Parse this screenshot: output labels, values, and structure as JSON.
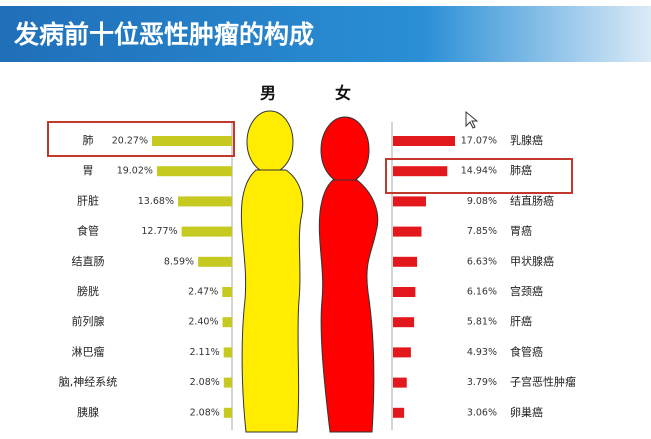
{
  "chart_data": {
    "type": "bar",
    "title": "发病前十位恶性肿瘤的构成",
    "series": [
      {
        "name": "男",
        "color": "#c6c920",
        "categories": [
          "肺",
          "胃",
          "肝脏",
          "食管",
          "结直肠",
          "膀胱",
          "前列腺",
          "淋巴瘤",
          "脑,神经系统",
          "胰腺"
        ],
        "values": [
          20.27,
          19.02,
          13.68,
          12.77,
          8.59,
          2.47,
          2.4,
          2.11,
          2.08,
          2.08
        ],
        "value_labels": [
          "20.27%",
          "19.02%",
          "13.68%",
          "12.77%",
          "8.59%",
          "2.47%",
          "2.40%",
          "2.11%",
          "2.08%",
          "2.08%"
        ]
      },
      {
        "name": "女",
        "color": "#e3181c",
        "categories": [
          "乳腺癌",
          "肺癌",
          "结直肠癌",
          "胃癌",
          "甲状腺癌",
          "宫颈癌",
          "肝癌",
          "食管癌",
          "子宫恶性肿瘤",
          "卵巢癌"
        ],
        "values": [
          17.07,
          14.94,
          9.08,
          7.85,
          6.63,
          6.16,
          5.81,
          4.93,
          3.79,
          3.06
        ],
        "value_labels": [
          "17.07%",
          "14.94%",
          "9.08%",
          "7.85%",
          "6.63%",
          "6.16%",
          "5.81%",
          "4.93%",
          "3.79%",
          "3.06%"
        ]
      }
    ]
  }
}
